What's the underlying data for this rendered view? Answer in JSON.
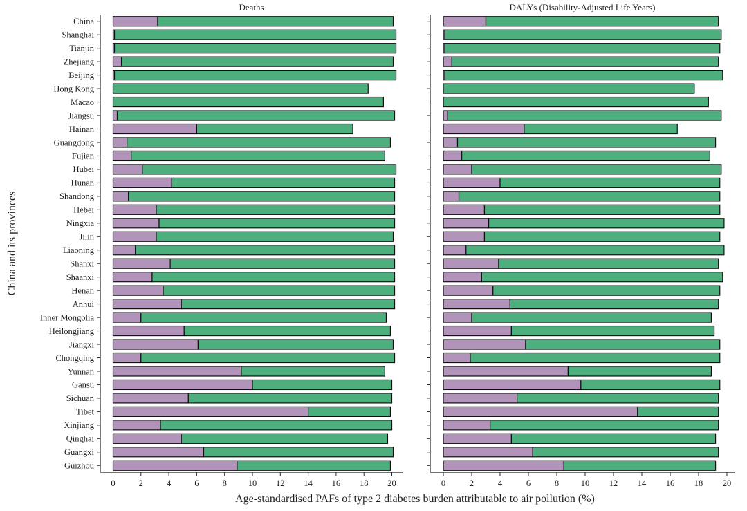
{
  "chart_data": [
    {
      "type": "bar",
      "orientation": "horizontal",
      "stacked": true,
      "title": "Deaths",
      "xlim": [
        0,
        20
      ],
      "xticks": [
        0,
        2,
        4,
        6,
        8,
        10,
        12,
        14,
        16,
        18,
        20
      ],
      "categories": [
        "China",
        "Shanghai",
        "Tianjin",
        "Zhejiang",
        "Beijing",
        "Hong Kong",
        "Macao",
        "Jiangsu",
        "Hainan",
        "Guangdong",
        "Fujian",
        "Hubei",
        "Hunan",
        "Shandong",
        "Hebei",
        "Ningxia",
        "Jilin",
        "Liaoning",
        "Shanxi",
        "Shaanxi",
        "Henan",
        "Anhui",
        "Inner Mongolia",
        "Heilongjiang",
        "Jiangxi",
        "Chongqing",
        "Yunnan",
        "Gansu",
        "Sichuan",
        "Tibet",
        "Xinjiang",
        "Qinghai",
        "Guangxi",
        "Guizhou"
      ],
      "series": [
        {
          "values": [
            3.2,
            0.1,
            0.1,
            0.6,
            0.1,
            0,
            0,
            0.3,
            6.0,
            1.0,
            1.3,
            2.1,
            4.2,
            1.1,
            3.1,
            3.3,
            3.1,
            1.6,
            4.1,
            2.8,
            3.6,
            4.9,
            2.0,
            5.1,
            6.1,
            2.0,
            9.2,
            10.0,
            5.4,
            14.0,
            3.4,
            4.9,
            6.5,
            8.9
          ]
        },
        {
          "values": [
            16.9,
            20.2,
            20.2,
            19.5,
            20.2,
            18.3,
            19.4,
            19.9,
            11.2,
            18.9,
            18.2,
            18.2,
            16.0,
            19.1,
            17.1,
            16.9,
            17.0,
            18.6,
            16.1,
            17.4,
            16.6,
            15.3,
            17.6,
            14.8,
            14.0,
            18.2,
            10.3,
            10.0,
            14.6,
            5.9,
            16.6,
            14.8,
            13.6,
            11.0
          ]
        }
      ],
      "colors": [
        "#b294bb",
        "#4caf7d"
      ]
    },
    {
      "type": "bar",
      "orientation": "horizontal",
      "stacked": true,
      "title": "DALYs (Disability-Adjusted Life Years)",
      "xlim": [
        0,
        20
      ],
      "xticks": [
        0,
        2,
        4,
        6,
        8,
        10,
        12,
        14,
        16,
        18,
        20
      ],
      "categories": [
        "China",
        "Shanghai",
        "Tianjin",
        "Zhejiang",
        "Beijing",
        "Hong Kong",
        "Macao",
        "Jiangsu",
        "Hainan",
        "Guangdong",
        "Fujian",
        "Hubei",
        "Hunan",
        "Shandong",
        "Hebei",
        "Ningxia",
        "Jilin",
        "Liaoning",
        "Shanxi",
        "Shaanxi",
        "Henan",
        "Anhui",
        "Inner Mongolia",
        "Heilongjiang",
        "Jiangxi",
        "Chongqing",
        "Yunnan",
        "Gansu",
        "Sichuan",
        "Tibet",
        "Xinjiang",
        "Qinghai",
        "Guangxi",
        "Guizhou"
      ],
      "series": [
        {
          "values": [
            3.0,
            0.1,
            0.1,
            0.6,
            0.1,
            0,
            0,
            0.3,
            5.7,
            1.0,
            1.3,
            2.0,
            4.0,
            1.1,
            2.9,
            3.2,
            2.9,
            1.6,
            3.9,
            2.7,
            3.5,
            4.7,
            2.0,
            4.8,
            5.8,
            1.9,
            8.8,
            9.7,
            5.2,
            13.7,
            3.3,
            4.8,
            6.3,
            8.5
          ]
        },
        {
          "values": [
            16.4,
            19.5,
            19.4,
            18.8,
            19.6,
            17.7,
            18.7,
            19.3,
            10.8,
            18.2,
            17.5,
            17.6,
            15.5,
            18.4,
            16.6,
            16.6,
            16.6,
            18.2,
            15.5,
            17.0,
            16.0,
            14.7,
            16.9,
            14.3,
            13.7,
            17.6,
            10.1,
            9.8,
            14.2,
            5.7,
            16.1,
            14.4,
            13.1,
            10.7
          ]
        }
      ],
      "colors": [
        "#b294bb",
        "#4caf7d"
      ]
    }
  ],
  "axes": {
    "x_title": "Age-standardised PAFs of type 2 diabetes burden attributable to air pollution (%)",
    "y_title": "China and its provinces"
  }
}
